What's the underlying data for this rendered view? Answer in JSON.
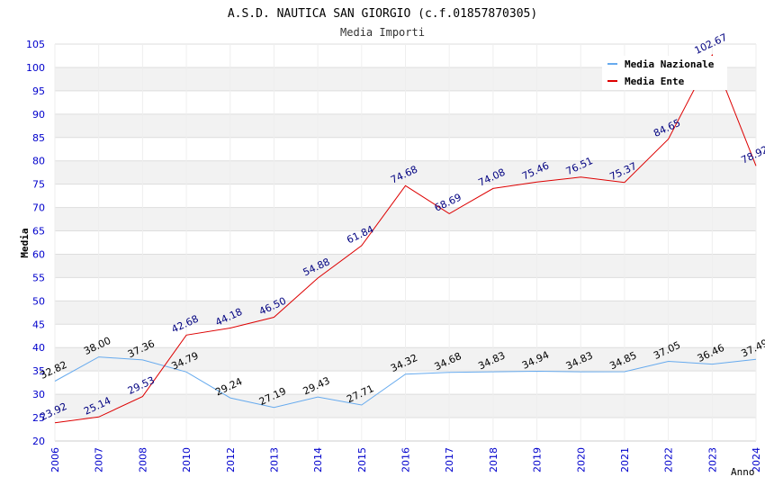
{
  "chart_data": {
    "type": "line",
    "title": "A.S.D. NAUTICA SAN GIORGIO (c.f.01857870305)",
    "subtitle": "Media Importi",
    "xlabel": "Anno",
    "ylabel": "Media",
    "ylim": [
      20,
      105
    ],
    "ytick_step": 5,
    "categories": [
      "2006",
      "2007",
      "2008",
      "2010",
      "2012",
      "2013",
      "2014",
      "2015",
      "2016",
      "2017",
      "2018",
      "2019",
      "2020",
      "2021",
      "2022",
      "2023",
      "2024"
    ],
    "series": [
      {
        "name": "Media Nazionale",
        "color": "#66aaee",
        "label_color": "#000000",
        "values": [
          32.82,
          38.0,
          37.36,
          34.79,
          29.24,
          27.19,
          29.43,
          27.71,
          34.32,
          34.68,
          34.83,
          34.94,
          34.83,
          34.85,
          37.05,
          36.46,
          37.49
        ],
        "labels": [
          "32.82",
          "38.00",
          "37.36",
          "34.79",
          "29.24",
          "27.19",
          "29.43",
          "27.71",
          "34.32",
          "34.68",
          "34.83",
          "34.94",
          "34.83",
          "34.85",
          "37.05",
          "36.46",
          "37.49"
        ]
      },
      {
        "name": "Media Ente",
        "color": "#dd0000",
        "label_color": "#000080",
        "values": [
          23.92,
          25.14,
          29.53,
          42.68,
          44.18,
          46.5,
          54.88,
          61.84,
          74.68,
          68.69,
          74.08,
          75.46,
          76.51,
          75.37,
          84.65,
          102.67,
          78.92
        ],
        "labels": [
          "23.92",
          "25.14",
          "29.53",
          "42.68",
          "44.18",
          "46.50",
          "54.88",
          "61.84",
          "74.68",
          "68.69",
          "74.08",
          "75.46",
          "76.51",
          "75.37",
          "84.65",
          "102.67",
          "78.92"
        ]
      }
    ],
    "grid": true,
    "legend_position": "top-right",
    "tick_color": "#0000cc",
    "band_color": "#f2f2f2"
  }
}
